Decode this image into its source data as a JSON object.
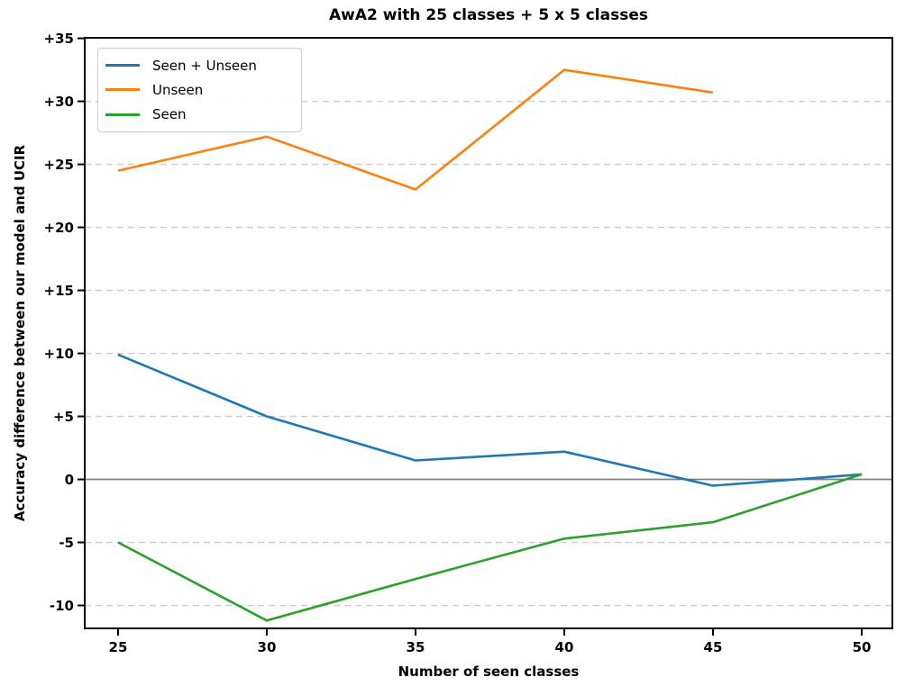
{
  "title": "AwA2 with 25 classes + 5 x 5 classes",
  "chart_data": {
    "type": "line",
    "title": "AwA2 with 25 classes + 5 x 5 classes",
    "xlabel": "Number of seen classes",
    "ylabel": "Accuracy difference between our model and UCIR",
    "series": [
      {
        "name": "Seen + Unseen",
        "color": "#1f77b4",
        "x": [
          25,
          30,
          35,
          40,
          45,
          50
        ],
        "values": [
          9.9,
          5.0,
          1.5,
          2.2,
          -0.5,
          0.4
        ]
      },
      {
        "name": "Unseen",
        "color": "#ff7f0e",
        "x": [
          25,
          30,
          35,
          40,
          45
        ],
        "values": [
          24.5,
          27.2,
          23.0,
          32.5,
          30.7
        ]
      },
      {
        "name": "Seen",
        "color": "#2ca02c",
        "x": [
          25,
          30,
          35,
          40,
          45,
          50
        ],
        "values": [
          -5.0,
          -11.2,
          -7.9,
          -4.7,
          -3.4,
          0.4
        ]
      }
    ],
    "xticks": [
      25,
      30,
      35,
      40,
      45,
      50
    ],
    "xtick_labels": [
      "25",
      "30",
      "35",
      "40",
      "45",
      "50"
    ],
    "ytick_values": [
      35,
      30,
      25,
      20,
      15,
      10,
      5,
      0,
      -5,
      -10
    ],
    "ytick_labels": [
      "+35",
      "+30",
      "+25",
      "+20",
      "+15",
      "+10",
      "+5",
      "0",
      "-5",
      "-10"
    ],
    "xlim": [
      23.88,
      51.03
    ],
    "ylim": [
      -11.82,
      35.04
    ],
    "grid": "horizontal-dashed",
    "zero_line": true,
    "legend_position": "upper-left",
    "colors": {
      "grid": "#cccccc",
      "zero_line": "#808080",
      "spine": "#000000",
      "background": "#ffffff"
    }
  },
  "legend": {
    "items": [
      {
        "label": "Seen + Unseen",
        "color": "#1f77b4"
      },
      {
        "label": "Unseen",
        "color": "#ff7f0e"
      },
      {
        "label": "Seen",
        "color": "#2ca02c"
      }
    ]
  }
}
